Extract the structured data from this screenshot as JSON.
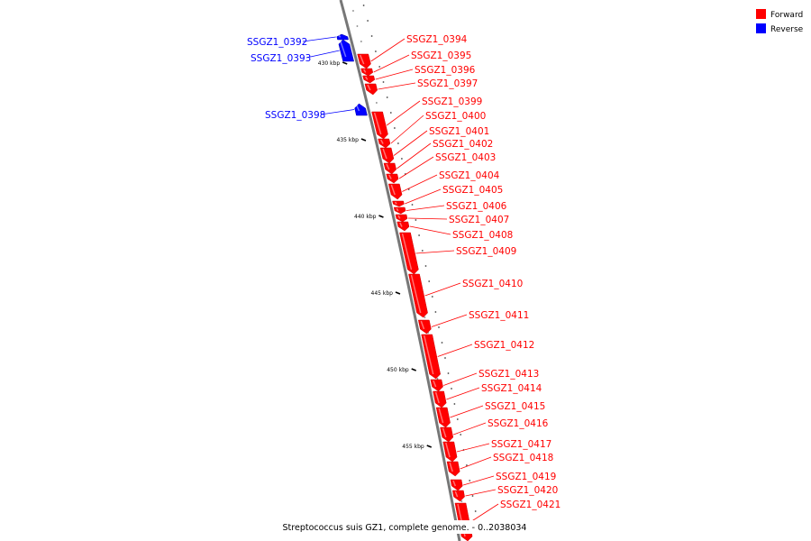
{
  "caption": "Streptococcus suis GZ1, complete genome. - 0..2038034",
  "colors": {
    "forward": "#ff0000",
    "reverse": "#0000ff",
    "backbone": "#777777"
  },
  "legend": [
    {
      "label": "Forward",
      "color": "#ff0000"
    },
    {
      "label": "Reverse",
      "color": "#0000ff"
    }
  ],
  "ruler": [
    {
      "label": "430 kbp"
    },
    {
      "label": "435 kbp"
    },
    {
      "label": "440 kbp"
    },
    {
      "label": "445 kbp"
    },
    {
      "label": "450 kbp"
    },
    {
      "label": "455 kbp"
    }
  ],
  "genes": [
    {
      "label": "SSGZ1_0392",
      "strand": "reverse"
    },
    {
      "label": "SSGZ1_0393",
      "strand": "reverse"
    },
    {
      "label": "SSGZ1_0394",
      "strand": "forward"
    },
    {
      "label": "SSGZ1_0395",
      "strand": "forward"
    },
    {
      "label": "SSGZ1_0396",
      "strand": "forward"
    },
    {
      "label": "SSGZ1_0397",
      "strand": "forward"
    },
    {
      "label": "SSGZ1_0398",
      "strand": "reverse"
    },
    {
      "label": "SSGZ1_0399",
      "strand": "forward"
    },
    {
      "label": "SSGZ1_0400",
      "strand": "forward"
    },
    {
      "label": "SSGZ1_0401",
      "strand": "forward"
    },
    {
      "label": "SSGZ1_0402",
      "strand": "forward"
    },
    {
      "label": "SSGZ1_0403",
      "strand": "forward"
    },
    {
      "label": "SSGZ1_0404",
      "strand": "forward"
    },
    {
      "label": "SSGZ1_0405",
      "strand": "forward"
    },
    {
      "label": "SSGZ1_0406",
      "strand": "forward"
    },
    {
      "label": "SSGZ1_0407",
      "strand": "forward"
    },
    {
      "label": "SSGZ1_0408",
      "strand": "forward"
    },
    {
      "label": "SSGZ1_0409",
      "strand": "forward"
    },
    {
      "label": "SSGZ1_0410",
      "strand": "forward"
    },
    {
      "label": "SSGZ1_0411",
      "strand": "forward"
    },
    {
      "label": "SSGZ1_0412",
      "strand": "forward"
    },
    {
      "label": "SSGZ1_0413",
      "strand": "forward"
    },
    {
      "label": "SSGZ1_0414",
      "strand": "forward"
    },
    {
      "label": "SSGZ1_0415",
      "strand": "forward"
    },
    {
      "label": "SSGZ1_0416",
      "strand": "forward"
    },
    {
      "label": "SSGZ1_0417",
      "strand": "forward"
    },
    {
      "label": "SSGZ1_0418",
      "strand": "forward"
    },
    {
      "label": "SSGZ1_0419",
      "strand": "forward"
    },
    {
      "label": "SSGZ1_0420",
      "strand": "forward"
    },
    {
      "label": "SSGZ1_0421",
      "strand": "forward"
    }
  ]
}
